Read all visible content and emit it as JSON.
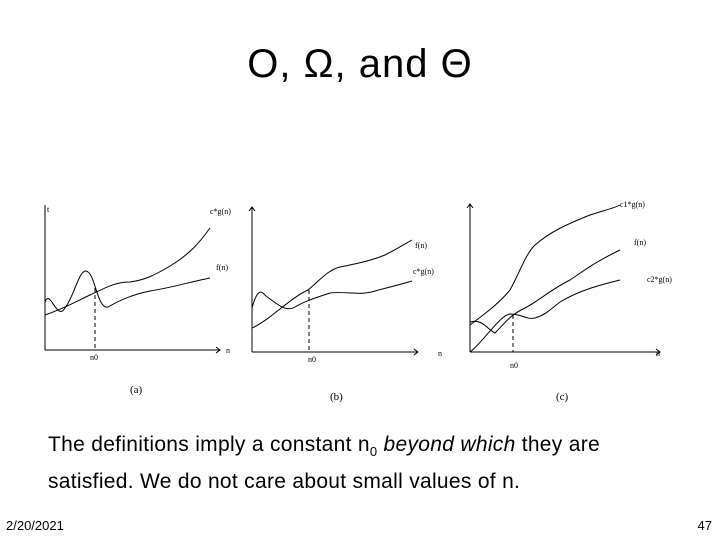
{
  "slide": {
    "title": "O, Ω, and Θ",
    "body_part1": "The definitions imply a constant n",
    "body_sub": "0",
    "body_italic": " beyond which",
    "body_part2": " they are satisfied. We do not care about small values of n.",
    "date": "2/20/2021",
    "page_number": "47"
  },
  "figure": {
    "panels": [
      {
        "caption": "(a)",
        "axis_y_label": "t",
        "axis_x_label": "n",
        "curve_labels": [
          "c*g(n)",
          "f(n)"
        ],
        "threshold_label": "n0"
      },
      {
        "caption": "(b)",
        "axis_x_label": "n",
        "curve_labels": [
          "f(n)",
          "c*g(n)"
        ],
        "threshold_label": "n0"
      },
      {
        "caption": "(c)",
        "axis_x_label": "n",
        "curve_labels": [
          "c1*g(n)",
          "f(n)",
          "c2*g(n)"
        ],
        "threshold_label": "n0"
      }
    ]
  }
}
